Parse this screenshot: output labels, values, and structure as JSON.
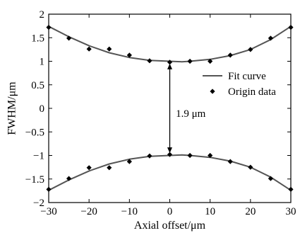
{
  "chart_data": {
    "type": "line",
    "xlabel": "Axial offset/μm",
    "ylabel": "FWHM/μm",
    "xlim": [
      -30,
      30
    ],
    "ylim": [
      -2,
      2
    ],
    "xticks": [
      -30,
      -20,
      -10,
      0,
      10,
      20,
      30
    ],
    "yticks": [
      -2,
      -1.5,
      -1,
      -0.5,
      0,
      0.5,
      1,
      1.5,
      2
    ],
    "xtick_labels": [
      "−30",
      "−20",
      "−10",
      "0",
      "10",
      "20",
      "30"
    ],
    "ytick_labels": [
      "−2",
      "−1.5",
      "−1",
      "−0.5",
      "0",
      "0.5",
      "1",
      "1.5",
      "2"
    ],
    "grid": false,
    "legend": {
      "placement": "right",
      "entries": [
        "Fit curve",
        "Origin data"
      ]
    },
    "series": [
      {
        "name": "Fit curve",
        "kind": "curve",
        "color": "#555555",
        "branches": [
          {
            "x": [
              -30,
              -25,
              -20,
              -15,
              -10,
              -5,
              0,
              3,
              5,
              10,
              15,
              20,
              25,
              30
            ],
            "y": [
              1.74,
              1.52,
              1.33,
              1.18,
              1.08,
              1.02,
              1.0,
              0.99,
              1.0,
              1.04,
              1.12,
              1.25,
              1.46,
              1.74
            ]
          },
          {
            "x": [
              -30,
              -25,
              -20,
              -15,
              -10,
              -5,
              0,
              3,
              5,
              10,
              15,
              20,
              25,
              30
            ],
            "y": [
              -1.74,
              -1.52,
              -1.33,
              -1.18,
              -1.08,
              -1.02,
              -1.0,
              -0.99,
              -1.0,
              -1.04,
              -1.12,
              -1.25,
              -1.46,
              -1.74
            ]
          }
        ]
      },
      {
        "name": "Origin data",
        "kind": "markers",
        "color": "#000000",
        "branches": [
          {
            "x": [
              -30,
              -25,
              -20,
              -15,
              -10,
              -5,
              0,
              5,
              10,
              15,
              20,
              25,
              30
            ],
            "y": [
              1.72,
              1.49,
              1.26,
              1.26,
              1.13,
              1.01,
              0.98,
              1.0,
              1.0,
              1.13,
              1.25,
              1.49,
              1.72
            ]
          },
          {
            "x": [
              -30,
              -25,
              -20,
              -15,
              -10,
              -5,
              0,
              5,
              10,
              15,
              20,
              25,
              30
            ],
            "y": [
              -1.72,
              -1.49,
              -1.26,
              -1.26,
              -1.13,
              -1.01,
              -0.98,
              -1.0,
              -1.0,
              -1.13,
              -1.25,
              -1.49,
              -1.72
            ]
          }
        ]
      }
    ],
    "annotation": {
      "text": "1.9 μm",
      "x": 0,
      "y_from": -0.95,
      "y_to": 0.95,
      "label_x": 1.5,
      "label_y": -0.18
    }
  }
}
